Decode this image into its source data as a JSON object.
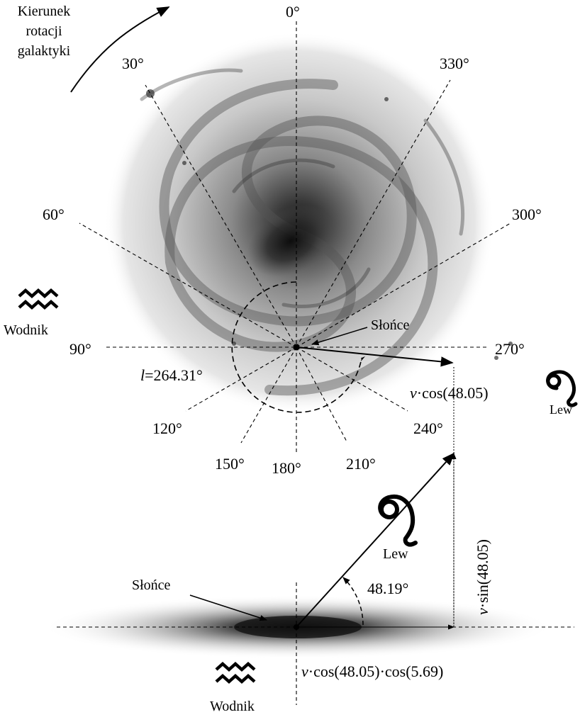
{
  "rotation_label": [
    "Kierunek",
    "rotacji",
    "galaktyki"
  ],
  "angle_labels": {
    "a0": "0°",
    "a30": "30°",
    "a60": "60°",
    "a90": "90°",
    "a120": "120°",
    "a150": "150°",
    "a180": "180°",
    "a210": "210°",
    "a240": "240°",
    "a270": "270°",
    "a300": "300°",
    "a330": "330°"
  },
  "sun_top": "Słońce",
  "sun_bottom": "Słońce",
  "longitude_prefix": "l",
  "longitude_value": "=264.31°",
  "v_symbol": "v",
  "v_cos_label": "·cos(48.05)",
  "v_sin_label": "·sin(48.05)",
  "v_cos_cos_label": "·cos(48.05)·cos(5.69)",
  "elevation_label": "48.19°",
  "wodnik_left": "Wodnik",
  "wodnik_bottom": "Wodnik",
  "lew_right": "Lew",
  "lew_middle": "Lew",
  "icons": {
    "aquarius": "aquarius-symbol",
    "leo": "leo-symbol"
  }
}
